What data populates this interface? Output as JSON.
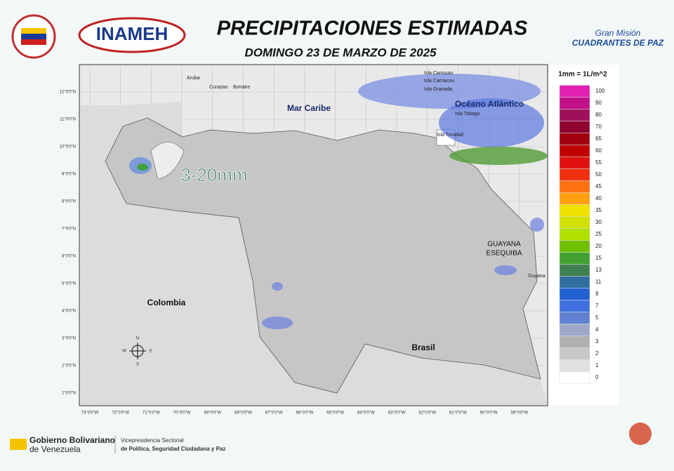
{
  "header": {
    "title": "PRECIPITACIONES ESTIMADAS",
    "subtitle": "DOMINGO 23 DE MARZO DE 2025",
    "logo_left": "INAMEH",
    "logo_right_top": "Gran Misión",
    "logo_right_bottom": "CUADRANTES DE PAZ"
  },
  "map": {
    "labels": [
      "Aruba",
      "Curazao",
      "Bonaire",
      "Isla Canouan",
      "Isla Carriacou",
      "Isla Granada",
      "Isla Tobago",
      "Isla Trinidad",
      "Mar Caribe",
      "Océano Atlántico",
      "Colombia",
      "Brasil",
      "GUAYANA",
      "ESEQUIBA",
      "Guyana"
    ],
    "annotation": "3-20mm",
    "compass": [
      "N",
      "S",
      "E",
      "W"
    ],
    "lat_ticks": [
      "12°0'0\"N",
      "11°0'0\"N",
      "10°0'0\"N",
      "9°0'0\"N",
      "8°0'0\"N",
      "7°0'0\"N",
      "6°0'0\"N",
      "5°0'0\"N",
      "4°0'0\"N",
      "3°0'0\"N",
      "2°0'0\"N",
      "1°0'0\"N"
    ],
    "lon_ticks": [
      "73°0'0\"W",
      "72°0'0\"W",
      "71°0'0\"W",
      "70°0'0\"W",
      "69°0'0\"W",
      "68°0'0\"W",
      "67°0'0\"W",
      "66°0'0\"W",
      "65°0'0\"W",
      "64°0'0\"W",
      "63°0'0\"W",
      "62°0'0\"W",
      "61°0'0\"W",
      "60°0'0\"W",
      "59°0'0\"W"
    ]
  },
  "legend": {
    "title": "1mm = 1L/m^2",
    "steps": [
      {
        "value": 100,
        "color": "#e020b0"
      },
      {
        "value": 90,
        "color": "#c0108a"
      },
      {
        "value": 80,
        "color": "#a0105a"
      },
      {
        "value": 70,
        "color": "#900030"
      },
      {
        "value": 65,
        "color": "#a00010"
      },
      {
        "value": 60,
        "color": "#c00000"
      },
      {
        "value": 55,
        "color": "#e01010"
      },
      {
        "value": 50,
        "color": "#f03010"
      },
      {
        "value": 45,
        "color": "#ff7010"
      },
      {
        "value": 40,
        "color": "#ffa010"
      },
      {
        "value": 35,
        "color": "#f0e000"
      },
      {
        "value": 30,
        "color": "#d0e000"
      },
      {
        "value": 25,
        "color": "#b0e000"
      },
      {
        "value": 20,
        "color": "#70c000"
      },
      {
        "value": 15,
        "color": "#40a030"
      },
      {
        "value": 13,
        "color": "#408050"
      },
      {
        "value": 11,
        "color": "#3070a0"
      },
      {
        "value": 9,
        "color": "#2060d0"
      },
      {
        "value": 7,
        "color": "#4070e0"
      },
      {
        "value": 5,
        "color": "#6080d0"
      },
      {
        "value": 4,
        "color": "#a0a8c8"
      },
      {
        "value": 3,
        "color": "#b0b0b0"
      },
      {
        "value": 2,
        "color": "#c8c8c8"
      },
      {
        "value": 1,
        "color": "#e0e0e0"
      },
      {
        "value": 0,
        "color": "#ffffff"
      }
    ]
  },
  "footer": {
    "gov_bold": "Gobierno Bolivariano",
    "gov_rest": "de Venezuela",
    "vice_1": "Vicepresidencia Sectorial",
    "vice_2": "de Política, Seguridad Ciudadana y Paz"
  }
}
